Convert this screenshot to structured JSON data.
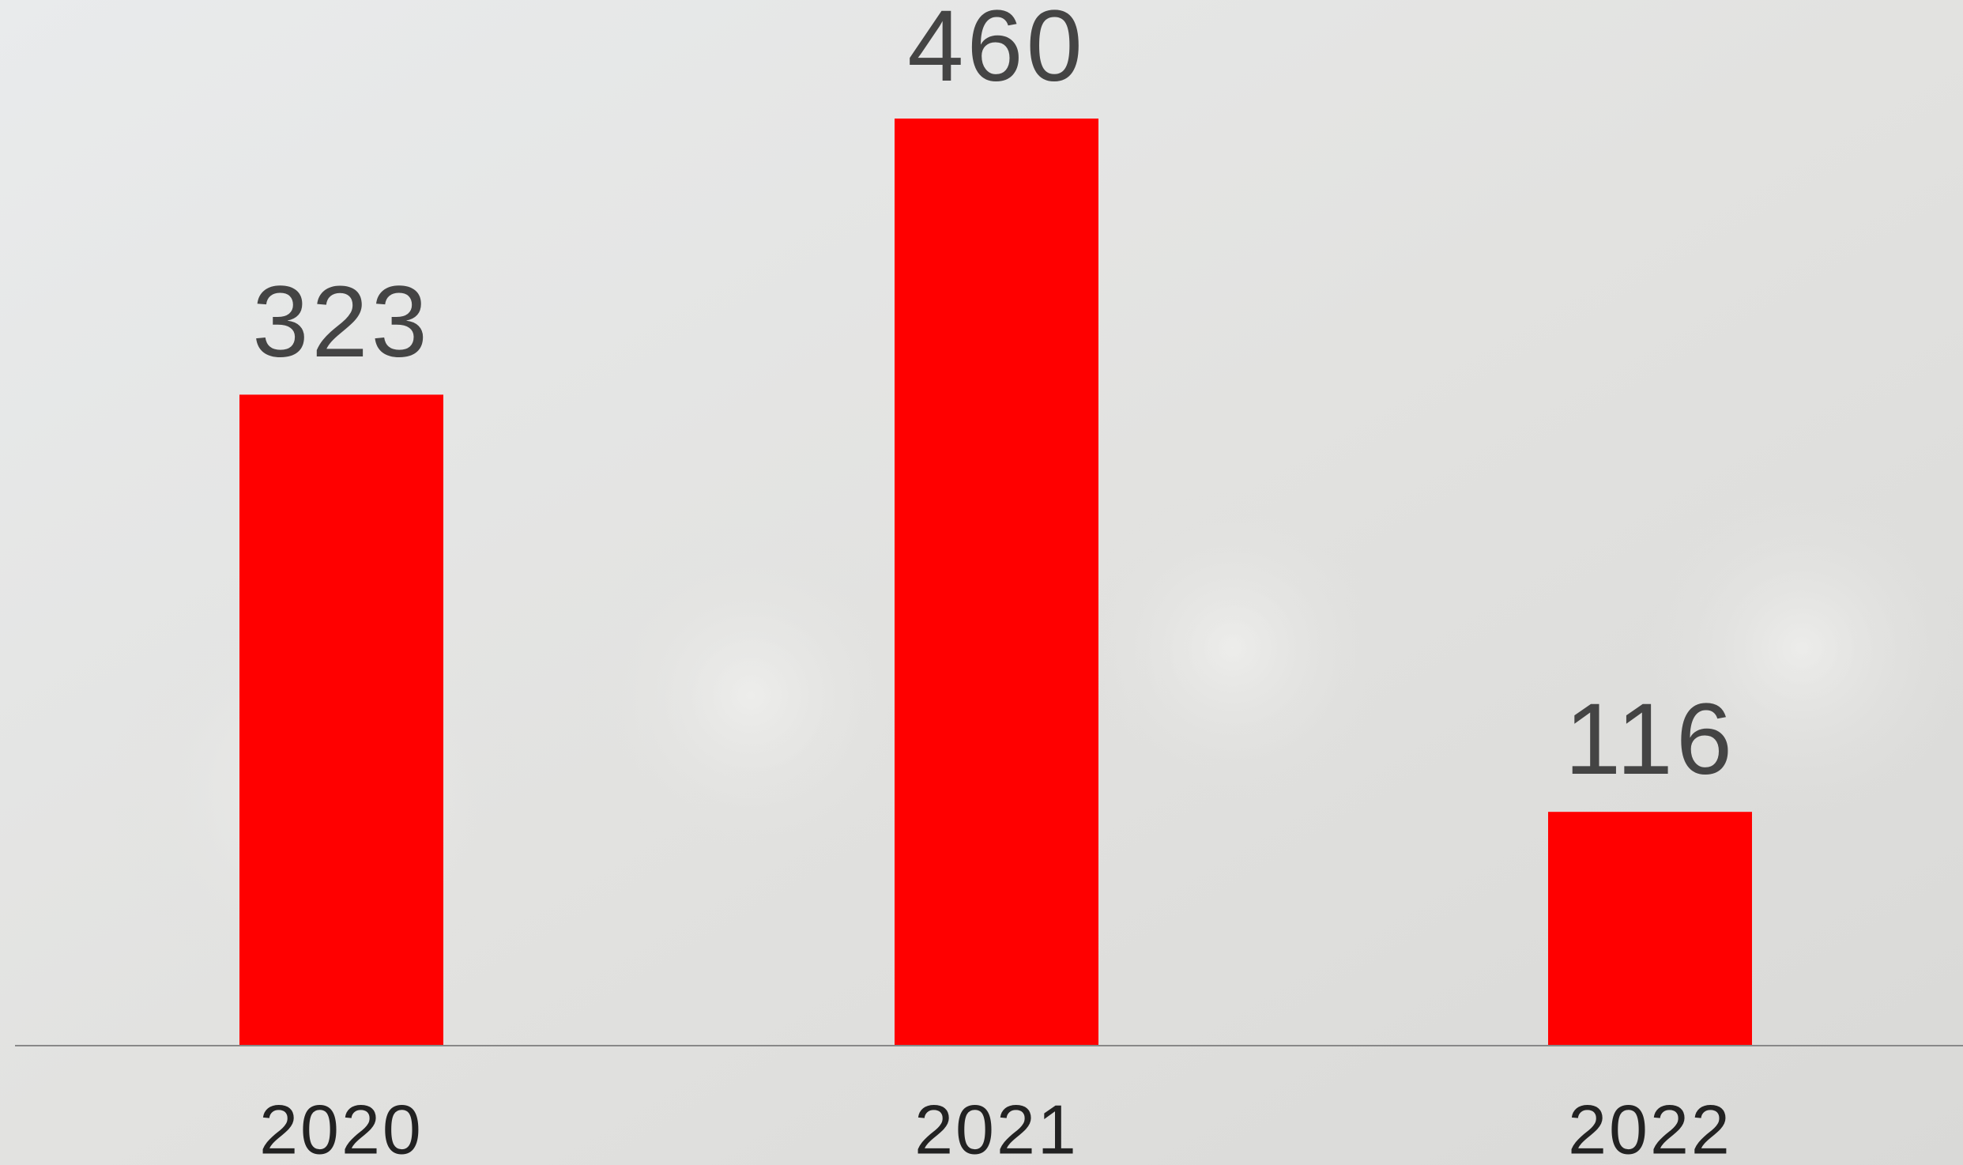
{
  "chart_data": {
    "type": "bar",
    "categories": [
      "2020",
      "2021",
      "2022"
    ],
    "values": [
      323,
      460,
      116
    ],
    "color": "#ff0000"
  }
}
